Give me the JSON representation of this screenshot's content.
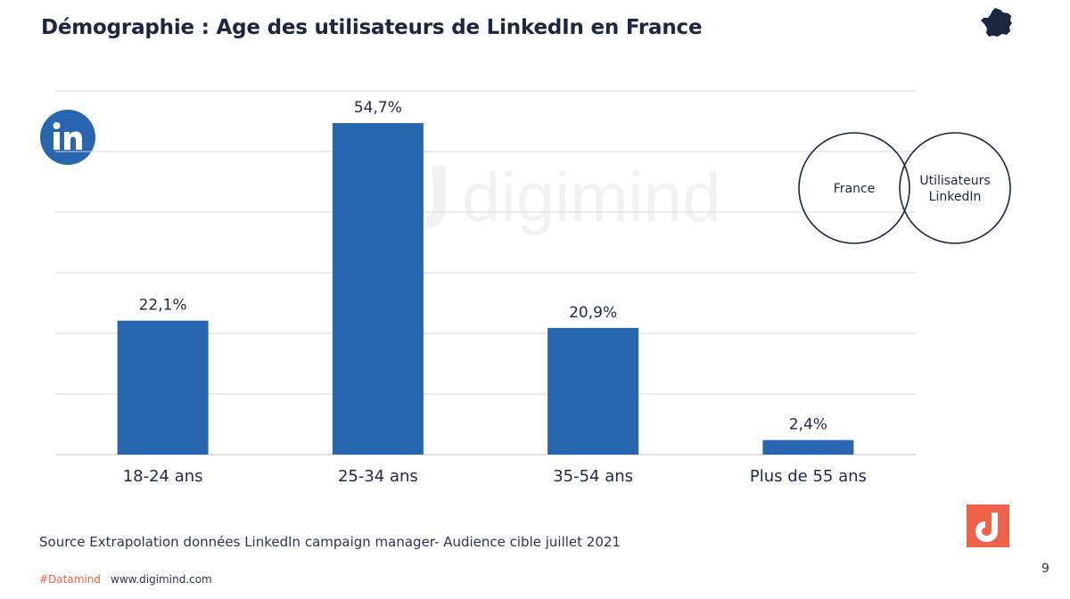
{
  "header": {
    "title": "Démographie : Age des utilisateurs de LinkedIn en France"
  },
  "icons": {
    "france": "france-map-icon",
    "linkedin": "linkedin-logo-icon",
    "digimind": "digimind-logo-icon",
    "watermark": "digimind-watermark"
  },
  "watermark_text": "digimind",
  "chart_data": {
    "type": "bar",
    "categories": [
      "18-24 ans",
      "25-34 ans",
      "35-54 ans",
      "Plus de 55 ans"
    ],
    "values": [
      22.1,
      54.7,
      20.9,
      2.4
    ],
    "data_labels": [
      "22,1%",
      "54,7%",
      "20,9%",
      "2,4%"
    ],
    "ylim": [
      0,
      60
    ],
    "grid": true,
    "bar_color": "#2866b0",
    "grid_color": "#d9d9d9"
  },
  "venn": {
    "left_label": "France",
    "right_label_line1": "Utilisateurs",
    "right_label_line2": "LinkedIn",
    "stroke_color": "#1b2640"
  },
  "source_text": "Source Extrapolation données LinkedIn campaign manager- Audience cible  juillet 2021",
  "footer": {
    "hashtag": "#Datamind",
    "website": "www.digimind.com",
    "page_number": "9"
  },
  "colors": {
    "accent": "#f0614a",
    "linkedin_blue": "#2866b0",
    "title": "#1b2640"
  }
}
